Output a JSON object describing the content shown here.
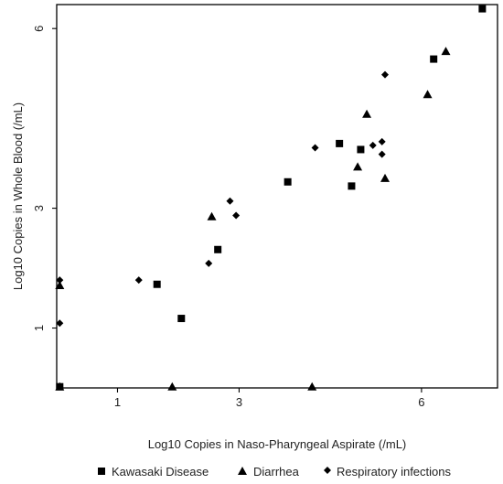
{
  "chart_data": {
    "type": "scatter",
    "title": "",
    "xlabel": "Log10 Copies in Naso-Pharyngeal Aspirate (/mL)",
    "ylabel": "Log10 Copies in Whole Blood (/mL)",
    "xlim": [
      0,
      7.25
    ],
    "ylim": [
      0,
      6.4
    ],
    "x_ticks": [
      {
        "value": 1,
        "label": "1"
      },
      {
        "value": 3,
        "label": "3"
      },
      {
        "value": 6,
        "label": "6"
      }
    ],
    "y_ticks": [
      {
        "value": 1,
        "label": "1"
      },
      {
        "value": 3,
        "label": "3"
      },
      {
        "value": 6,
        "label": "6"
      }
    ],
    "grid": false,
    "legend_position": "bottom",
    "series": [
      {
        "name": "Kawasaki Disease",
        "marker": "square",
        "color": "#000000",
        "points": [
          {
            "x": 0.05,
            "y": 0.02
          },
          {
            "x": 1.65,
            "y": 1.73
          },
          {
            "x": 2.05,
            "y": 1.16
          },
          {
            "x": 2.65,
            "y": 2.31
          },
          {
            "x": 3.8,
            "y": 3.44
          },
          {
            "x": 4.65,
            "y": 4.08
          },
          {
            "x": 4.85,
            "y": 3.37
          },
          {
            "x": 5.0,
            "y": 3.98
          },
          {
            "x": 6.2,
            "y": 5.49
          },
          {
            "x": 7.0,
            "y": 6.33
          }
        ]
      },
      {
        "name": "Diarrhea",
        "marker": "triangle",
        "color": "#000000",
        "points": [
          {
            "x": 0.05,
            "y": 1.71
          },
          {
            "x": 0.05,
            "y": 0.02
          },
          {
            "x": 1.9,
            "y": 0.02
          },
          {
            "x": 2.55,
            "y": 2.86
          },
          {
            "x": 4.2,
            "y": 0.02
          },
          {
            "x": 4.95,
            "y": 3.69
          },
          {
            "x": 5.1,
            "y": 4.57
          },
          {
            "x": 5.4,
            "y": 3.5
          },
          {
            "x": 6.1,
            "y": 4.9
          },
          {
            "x": 6.4,
            "y": 5.62
          }
        ]
      },
      {
        "name": "Respiratory infections",
        "marker": "diamond",
        "color": "#000000",
        "points": [
          {
            "x": 0.05,
            "y": 1.08
          },
          {
            "x": 0.05,
            "y": 1.8
          },
          {
            "x": 1.35,
            "y": 1.8
          },
          {
            "x": 2.5,
            "y": 2.08
          },
          {
            "x": 2.85,
            "y": 3.12
          },
          {
            "x": 2.95,
            "y": 2.88
          },
          {
            "x": 4.25,
            "y": 4.01
          },
          {
            "x": 5.2,
            "y": 4.05
          },
          {
            "x": 5.35,
            "y": 4.11
          },
          {
            "x": 5.35,
            "y": 3.9
          },
          {
            "x": 5.4,
            "y": 5.23
          }
        ]
      }
    ]
  }
}
